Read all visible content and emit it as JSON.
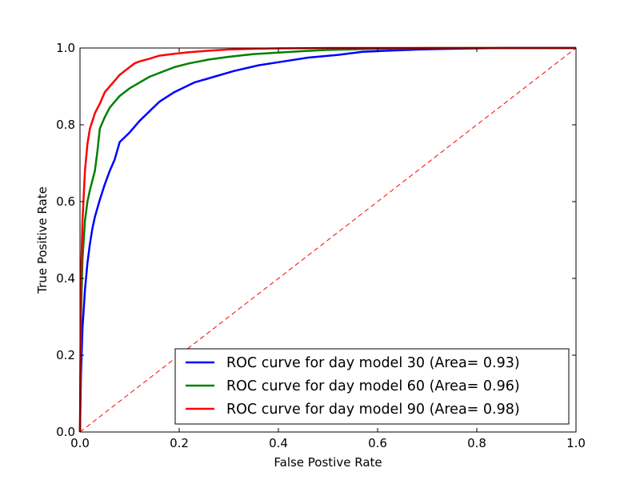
{
  "chart_data": {
    "type": "line",
    "title": "",
    "xlabel": "False Postive Rate",
    "ylabel": "True Positive Rate",
    "xlim": [
      0,
      1
    ],
    "ylim": [
      0,
      1
    ],
    "grid": false,
    "legend_position": "bottom-right",
    "xticks": [
      "0.0",
      "0.2",
      "0.4",
      "0.6",
      "0.8",
      "1.0"
    ],
    "yticks": [
      "0.0",
      "0.2",
      "0.4",
      "0.6",
      "0.8",
      "1.0"
    ],
    "series": [
      {
        "name": "ROC curve for day model 30 (Area= 0.93)",
        "color": "#0000ff",
        "x": [
          0,
          0.002,
          0.005,
          0.01,
          0.015,
          0.02,
          0.025,
          0.03,
          0.04,
          0.05,
          0.06,
          0.07,
          0.08,
          0.1,
          0.12,
          0.14,
          0.16,
          0.19,
          0.23,
          0.27,
          0.31,
          0.36,
          0.41,
          0.46,
          0.52,
          0.57,
          0.62,
          0.68,
          0.75,
          0.85,
          1.0
        ],
        "y": [
          0,
          0.15,
          0.27,
          0.37,
          0.44,
          0.49,
          0.53,
          0.56,
          0.605,
          0.645,
          0.68,
          0.71,
          0.755,
          0.78,
          0.81,
          0.835,
          0.86,
          0.885,
          0.91,
          0.925,
          0.94,
          0.955,
          0.965,
          0.975,
          0.982,
          0.99,
          0.993,
          0.996,
          0.998,
          1.0,
          1.0
        ]
      },
      {
        "name": "ROC curve for day model 60 (Area= 0.96)",
        "color": "#008000",
        "x": [
          0,
          0.002,
          0.005,
          0.01,
          0.015,
          0.02,
          0.025,
          0.03,
          0.035,
          0.04,
          0.05,
          0.06,
          0.07,
          0.08,
          0.09,
          0.1,
          0.12,
          0.14,
          0.16,
          0.19,
          0.22,
          0.26,
          0.3,
          0.35,
          0.4,
          0.45,
          0.5,
          0.6,
          0.7,
          0.8,
          1.0
        ],
        "y": [
          0,
          0.3,
          0.45,
          0.55,
          0.6,
          0.63,
          0.655,
          0.68,
          0.73,
          0.79,
          0.82,
          0.845,
          0.86,
          0.875,
          0.885,
          0.895,
          0.91,
          0.925,
          0.935,
          0.95,
          0.96,
          0.97,
          0.977,
          0.984,
          0.988,
          0.992,
          0.995,
          0.998,
          1.0,
          1.0,
          1.0
        ]
      },
      {
        "name": "ROC curve for day model 90 (Area= 0.98)",
        "color": "#ff0000",
        "x": [
          0,
          0.002,
          0.005,
          0.01,
          0.015,
          0.02,
          0.025,
          0.03,
          0.04,
          0.05,
          0.06,
          0.07,
          0.08,
          0.09,
          0.1,
          0.11,
          0.12,
          0.14,
          0.16,
          0.19,
          0.22,
          0.26,
          0.3,
          0.35,
          0.4,
          0.5,
          0.6,
          0.7,
          0.8,
          1.0
        ],
        "y": [
          0,
          0.4,
          0.55,
          0.68,
          0.75,
          0.79,
          0.81,
          0.83,
          0.855,
          0.885,
          0.9,
          0.915,
          0.93,
          0.94,
          0.95,
          0.96,
          0.965,
          0.972,
          0.98,
          0.985,
          0.989,
          0.993,
          0.996,
          0.998,
          0.999,
          1.0,
          1.0,
          1.0,
          1.0,
          1.0
        ]
      }
    ],
    "reference_line": {
      "name": "random-guess diagonal",
      "color": "#ff0000",
      "style": "dashed",
      "x": [
        0,
        1
      ],
      "y": [
        0,
        1
      ]
    }
  }
}
